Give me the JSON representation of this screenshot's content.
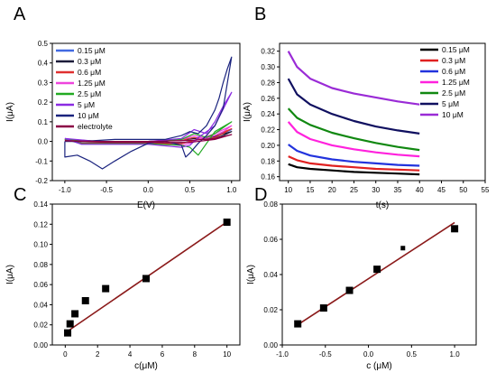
{
  "figure": {
    "panel_labels": [
      "A",
      "B",
      "C",
      "D"
    ]
  },
  "chart_data": [
    {
      "panel": "A",
      "type": "line",
      "title": "",
      "xlabel": "E(V)",
      "ylabel": "I(μA)",
      "xlim": [
        -1.15,
        1.1
      ],
      "ylim": [
        -0.2,
        0.5
      ],
      "xticks": [
        -1.0,
        -0.5,
        0.0,
        0.5,
        1.0
      ],
      "xtick_labels": [
        "-1.0",
        "-0.5",
        "0.0",
        "0.5",
        "1.0"
      ],
      "yticks": [
        -0.2,
        -0.1,
        0.0,
        0.1,
        0.2,
        0.3,
        0.4,
        0.5
      ],
      "ytick_labels": [
        "-0.2",
        "-0.1",
        "0.0",
        "0.1",
        "0.2",
        "0.3",
        "0.4",
        "0.5"
      ],
      "legend_position": "top-left",
      "series": [
        {
          "name": "0.15 μM",
          "color": "#4169e1",
          "x": [
            -1.0,
            -0.6,
            0.0,
            0.4,
            0.55,
            0.7,
            0.8,
            0.9,
            1.0,
            0.8,
            0.6,
            0.5,
            0.4,
            0.0,
            -0.4,
            -0.8,
            -1.0
          ],
          "y": [
            0.01,
            0.0,
            0.0,
            0.005,
            0.02,
            0.01,
            0.02,
            0.04,
            0.06,
            0.03,
            0.01,
            0.0,
            -0.01,
            -0.01,
            -0.01,
            -0.01,
            0.01
          ]
        },
        {
          "name": "0.3 μM",
          "color": "#1c1c3a",
          "x": [
            -1.0,
            -0.6,
            0.0,
            0.4,
            0.55,
            0.7,
            0.8,
            0.9,
            1.0,
            0.8,
            0.6,
            0.5,
            0.4,
            0.0,
            -0.4,
            -0.8,
            -1.0
          ],
          "y": [
            0.008,
            0.0,
            0.0,
            0.005,
            0.015,
            0.008,
            0.015,
            0.03,
            0.05,
            0.025,
            0.008,
            0.0,
            -0.01,
            -0.008,
            -0.008,
            -0.008,
            0.008
          ]
        },
        {
          "name": "0.6 μM",
          "color": "#e03030",
          "x": [
            -1.0,
            -0.6,
            0.0,
            0.4,
            0.55,
            0.7,
            0.8,
            0.9,
            1.0,
            0.8,
            0.6,
            0.5,
            0.4,
            0.0,
            -0.4,
            -0.8,
            -1.0
          ],
          "y": [
            0.01,
            0.0,
            0.0,
            0.005,
            0.02,
            0.01,
            0.02,
            0.04,
            0.065,
            0.03,
            0.01,
            0.0,
            -0.012,
            -0.01,
            -0.01,
            -0.01,
            0.01
          ]
        },
        {
          "name": "1.25 μM",
          "color": "#ee44dd",
          "x": [
            -1.0,
            -0.6,
            0.0,
            0.4,
            0.55,
            0.7,
            0.8,
            0.9,
            1.0,
            0.8,
            0.6,
            0.5,
            0.4,
            0.0,
            -0.4,
            -0.8,
            -1.0
          ],
          "y": [
            0.012,
            0.0,
            0.0,
            0.008,
            0.03,
            0.015,
            0.03,
            0.05,
            0.08,
            0.04,
            0.01,
            -0.01,
            -0.02,
            -0.012,
            -0.012,
            -0.012,
            0.012
          ]
        },
        {
          "name": "2.5 μM",
          "color": "#22aa22",
          "x": [
            -1.0,
            -0.6,
            0.0,
            0.4,
            0.55,
            0.7,
            0.8,
            0.9,
            1.0,
            0.8,
            0.6,
            0.5,
            0.4,
            0.0,
            -0.4,
            -0.8,
            -1.0
          ],
          "y": [
            0.012,
            0.0,
            0.0,
            0.01,
            0.04,
            0.02,
            0.04,
            0.07,
            0.1,
            0.05,
            -0.07,
            -0.03,
            -0.02,
            -0.012,
            -0.012,
            -0.012,
            0.012
          ]
        },
        {
          "name": "5 μM",
          "color": "#8b2be2",
          "x": [
            -1.0,
            -0.6,
            0.0,
            0.4,
            0.55,
            0.7,
            0.8,
            0.9,
            1.0,
            0.8,
            0.6,
            0.5,
            0.4,
            0.0,
            -0.4,
            -0.8,
            -1.0
          ],
          "y": [
            0.015,
            0.0,
            0.0,
            0.015,
            0.06,
            0.04,
            0.1,
            0.18,
            0.25,
            0.08,
            0.02,
            -0.02,
            -0.03,
            -0.015,
            -0.015,
            -0.015,
            0.015
          ]
        },
        {
          "name": "10 μM",
          "color": "#1a237e",
          "x": [
            -1.0,
            -0.8,
            -0.6,
            -0.4,
            -0.2,
            0.0,
            0.2,
            0.4,
            0.5,
            0.6,
            0.7,
            0.75,
            0.8,
            0.85,
            0.9,
            0.95,
            1.0,
            0.9,
            0.8,
            0.7,
            0.6,
            0.5,
            0.45,
            0.4,
            0.2,
            0.0,
            -0.2,
            -0.4,
            -0.55,
            -0.7,
            -0.85,
            -1.0
          ],
          "y": [
            0.0,
            0.0,
            0.005,
            0.01,
            0.01,
            0.01,
            0.01,
            0.03,
            0.05,
            0.04,
            0.08,
            0.12,
            0.16,
            0.22,
            0.3,
            0.37,
            0.43,
            0.17,
            0.08,
            0.03,
            -0.01,
            -0.06,
            -0.08,
            -0.02,
            0.0,
            -0.01,
            -0.05,
            -0.1,
            -0.14,
            -0.1,
            -0.07,
            -0.08
          ]
        },
        {
          "name": "electrolyte",
          "color": "#8b0045",
          "x": [
            -1.0,
            -0.5,
            0.0,
            0.5,
            0.8,
            1.0,
            0.8,
            0.5,
            0.0,
            -0.5,
            -1.0
          ],
          "y": [
            0.003,
            0.0,
            0.0,
            0.005,
            0.015,
            0.035,
            0.01,
            -0.005,
            -0.005,
            -0.005,
            0.003
          ]
        }
      ]
    },
    {
      "panel": "B",
      "type": "line",
      "title": "",
      "xlabel": "t(s)",
      "ylabel": "I(μA)",
      "xlim": [
        8,
        55
      ],
      "ylim": [
        0.155,
        0.33
      ],
      "xticks": [
        10,
        15,
        20,
        25,
        30,
        35,
        40,
        45,
        50,
        55
      ],
      "xtick_labels": [
        "10",
        "15",
        "20",
        "25",
        "30",
        "35",
        "40",
        "45",
        "50",
        "55"
      ],
      "yticks": [
        0.16,
        0.18,
        0.2,
        0.22,
        0.24,
        0.26,
        0.28,
        0.3,
        0.32
      ],
      "ytick_labels": [
        "0.16",
        "0.18",
        "0.20",
        "0.22",
        "0.24",
        "0.26",
        "0.28",
        "0.30",
        "0.32"
      ],
      "legend_position": "top-right",
      "series": [
        {
          "name": "0.15 μM",
          "color": "#000000",
          "x": [
            10,
            12,
            15,
            20,
            25,
            30,
            35,
            40
          ],
          "y": [
            0.176,
            0.172,
            0.17,
            0.168,
            0.166,
            0.165,
            0.164,
            0.163
          ]
        },
        {
          "name": "0.3 μM",
          "color": "#e02020",
          "x": [
            10,
            12,
            15,
            20,
            25,
            30,
            35,
            40
          ],
          "y": [
            0.186,
            0.181,
            0.177,
            0.174,
            0.172,
            0.17,
            0.169,
            0.168
          ]
        },
        {
          "name": "0.6 μM",
          "color": "#2233dd",
          "x": [
            10,
            12,
            15,
            20,
            25,
            30,
            35,
            40
          ],
          "y": [
            0.201,
            0.193,
            0.187,
            0.182,
            0.179,
            0.177,
            0.175,
            0.174
          ]
        },
        {
          "name": "1.25 μM",
          "color": "#ff22dd",
          "x": [
            10,
            12,
            15,
            20,
            25,
            30,
            35,
            40
          ],
          "y": [
            0.23,
            0.217,
            0.208,
            0.2,
            0.195,
            0.191,
            0.188,
            0.186
          ]
        },
        {
          "name": "2.5 μM",
          "color": "#118811",
          "x": [
            10,
            12,
            15,
            20,
            25,
            30,
            35,
            40
          ],
          "y": [
            0.247,
            0.235,
            0.226,
            0.216,
            0.209,
            0.203,
            0.198,
            0.194
          ]
        },
        {
          "name": "5 μM",
          "color": "#101060",
          "x": [
            10,
            12,
            15,
            20,
            25,
            30,
            35,
            40
          ],
          "y": [
            0.285,
            0.265,
            0.252,
            0.24,
            0.231,
            0.224,
            0.219,
            0.215
          ]
        },
        {
          "name": "10 μM",
          "color": "#9a2bd6",
          "x": [
            10,
            12,
            15,
            20,
            25,
            30,
            35,
            40
          ],
          "y": [
            0.32,
            0.3,
            0.285,
            0.273,
            0.266,
            0.261,
            0.256,
            0.252
          ]
        }
      ]
    },
    {
      "panel": "C",
      "type": "scatter",
      "title": "",
      "xlabel": "c(μM)",
      "ylabel": "I(μA)",
      "xlim": [
        -0.8,
        10.8
      ],
      "ylim": [
        0,
        0.14
      ],
      "xticks": [
        0,
        2,
        4,
        6,
        8,
        10
      ],
      "xtick_labels": [
        "0",
        "2",
        "4",
        "6",
        "8",
        "10"
      ],
      "yticks": [
        0.0,
        0.02,
        0.04,
        0.06,
        0.08,
        0.1,
        0.12,
        0.14
      ],
      "ytick_labels": [
        "0.00",
        "0.02",
        "0.04",
        "0.06",
        "0.08",
        "0.10",
        "0.12",
        "0.14"
      ],
      "series": [
        {
          "x": [
            0.15,
            0.3,
            0.6,
            1.25,
            2.5,
            5,
            10
          ],
          "y": [
            0.012,
            0.021,
            0.031,
            0.044,
            0.056,
            0.066,
            0.122
          ]
        }
      ],
      "fit_line": {
        "x": [
          0.15,
          10
        ],
        "y": [
          0.0137,
          0.1223
        ],
        "color": "#8b1a1a"
      }
    },
    {
      "panel": "D",
      "type": "scatter",
      "title": "",
      "xlabel": "c (μM)",
      "ylabel": "I(μA)",
      "xlim": [
        -1.0,
        1.25
      ],
      "ylim": [
        0,
        0.08
      ],
      "xticks": [
        -1.0,
        -0.5,
        0.0,
        0.5,
        1.0
      ],
      "xtick_labels": [
        "-1.0",
        "-0.5",
        "0.0",
        "0.5",
        "1.0"
      ],
      "yticks": [
        0.0,
        0.02,
        0.04,
        0.06,
        0.08
      ],
      "ytick_labels": [
        "0.00",
        "0.02",
        "0.04",
        "0.06",
        "0.08"
      ],
      "series": [
        {
          "x": [
            -0.82,
            -0.52,
            -0.22,
            0.1,
            0.4,
            1.0
          ],
          "y": [
            0.012,
            0.021,
            0.031,
            0.043,
            0.055,
            0.066
          ]
        }
      ],
      "fit_line": {
        "x": [
          -0.82,
          1.0
        ],
        "y": [
          0.0115,
          0.0695
        ],
        "color": "#8b1a1a"
      }
    }
  ]
}
